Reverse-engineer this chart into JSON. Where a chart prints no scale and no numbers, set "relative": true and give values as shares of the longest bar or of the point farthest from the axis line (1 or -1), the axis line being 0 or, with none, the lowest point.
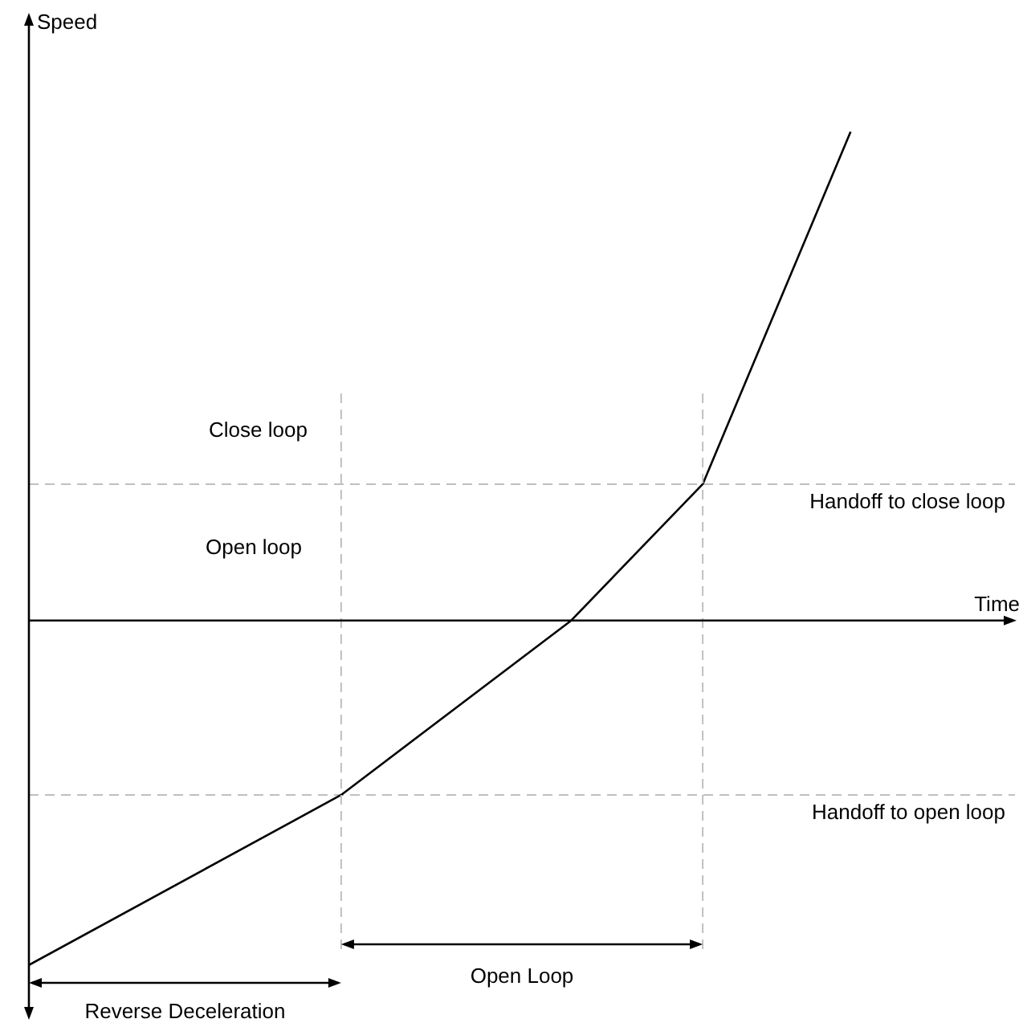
{
  "chart_data": {
    "type": "line",
    "relative": true,
    "ylabel": "Speed",
    "marker": "none",
    "line_style": "solid",
    "categories": [
      null,
      null,
      null,
      null,
      null,
      null,
      null,
      null,
      null,
      null,
      null,
      null,
      null,
      null,
      null,
      null,
      null,
      null,
      null,
      null,
      null,
      null,
      null,
      null,
      null,
      null,
      null,
      null,
      null,
      null,
      null,
      null,
      null,
      null,
      null,
      null,
      null,
      null,
      null,
      null,
      null,
      null,
      null,
      null,
      null,
      null,
      null,
      null,
      null,
      null,
      null
    ],
    "series": [
      {
        "color": "#000000",
        "values": [
          -0.705,
          null,
          null,
          null,
          null,
          null,
          null,
          null,
          null,
          null,
          null,
          null,
          null,
          null,
          null,
          null,
          null,
          null,
          null,
          -0.357,
          null,
          null,
          null,
          null,
          null,
          null,
          null,
          null,
          null,
          null,
          null,
          null,
          null,
          0,
          null,
          null,
          null,
          null,
          null,
          null,
          null,
          0.279,
          null,
          null,
          null,
          null,
          null,
          null,
          null,
          null,
          1
        ]
      }
    ],
    "ref_lines": [
      {
        "axis": "y",
        "value": 0.279,
        "label": "Handoff to close loop",
        "color": "#bfbfbf",
        "line_style": "dashed"
      },
      {
        "axis": "y",
        "value": -0.357,
        "label": "Handoff to open loop",
        "color": "#bfbfbf",
        "line_style": "dashed"
      }
    ],
    "annotations": [
      "Close loop",
      "Open loop",
      "Open Loop",
      "Reverse Deceleration",
      "Time"
    ]
  }
}
